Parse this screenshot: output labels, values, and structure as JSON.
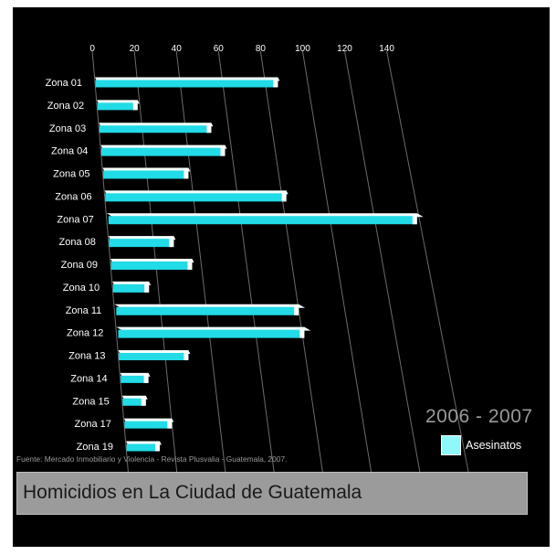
{
  "chart_data": {
    "type": "bar",
    "title": "Homicidios en La Ciudad de Guatemala",
    "subtitle": "2006 - 2007",
    "source": "Fuente:  Mercado Inmobiliario y Violencia - Revista Plusvalia - Guatemala, 2007.",
    "categories": [
      "Zona 01",
      "Zona 02",
      "Zona 03",
      "Zona 04",
      "Zona 05",
      "Zona 06",
      "Zona 07",
      "Zona 08",
      "Zona 09",
      "Zona 10",
      "Zona 11",
      "Zona 12",
      "Zona 13",
      "Zona 14",
      "Zona 15",
      "Zona 17",
      "Zona 19"
    ],
    "series": [
      {
        "name": "Asesinatos",
        "values": [
          86,
          19,
          52,
          57,
          39,
          82,
          139,
          29,
          36,
          16,
          80,
          81,
          30,
          12,
          10,
          20,
          14
        ]
      }
    ],
    "x_ticks": [
      0,
      20,
      40,
      60,
      80,
      100,
      120,
      140
    ],
    "xlim": [
      0,
      140
    ],
    "orientation": "horizontal",
    "legend_position": "bottom-right",
    "grid": true,
    "colors": {
      "bar_front": "#21dbe6",
      "bar_top": "#f4ffff",
      "grid": "#9a9a9a",
      "background": "#000000"
    }
  }
}
